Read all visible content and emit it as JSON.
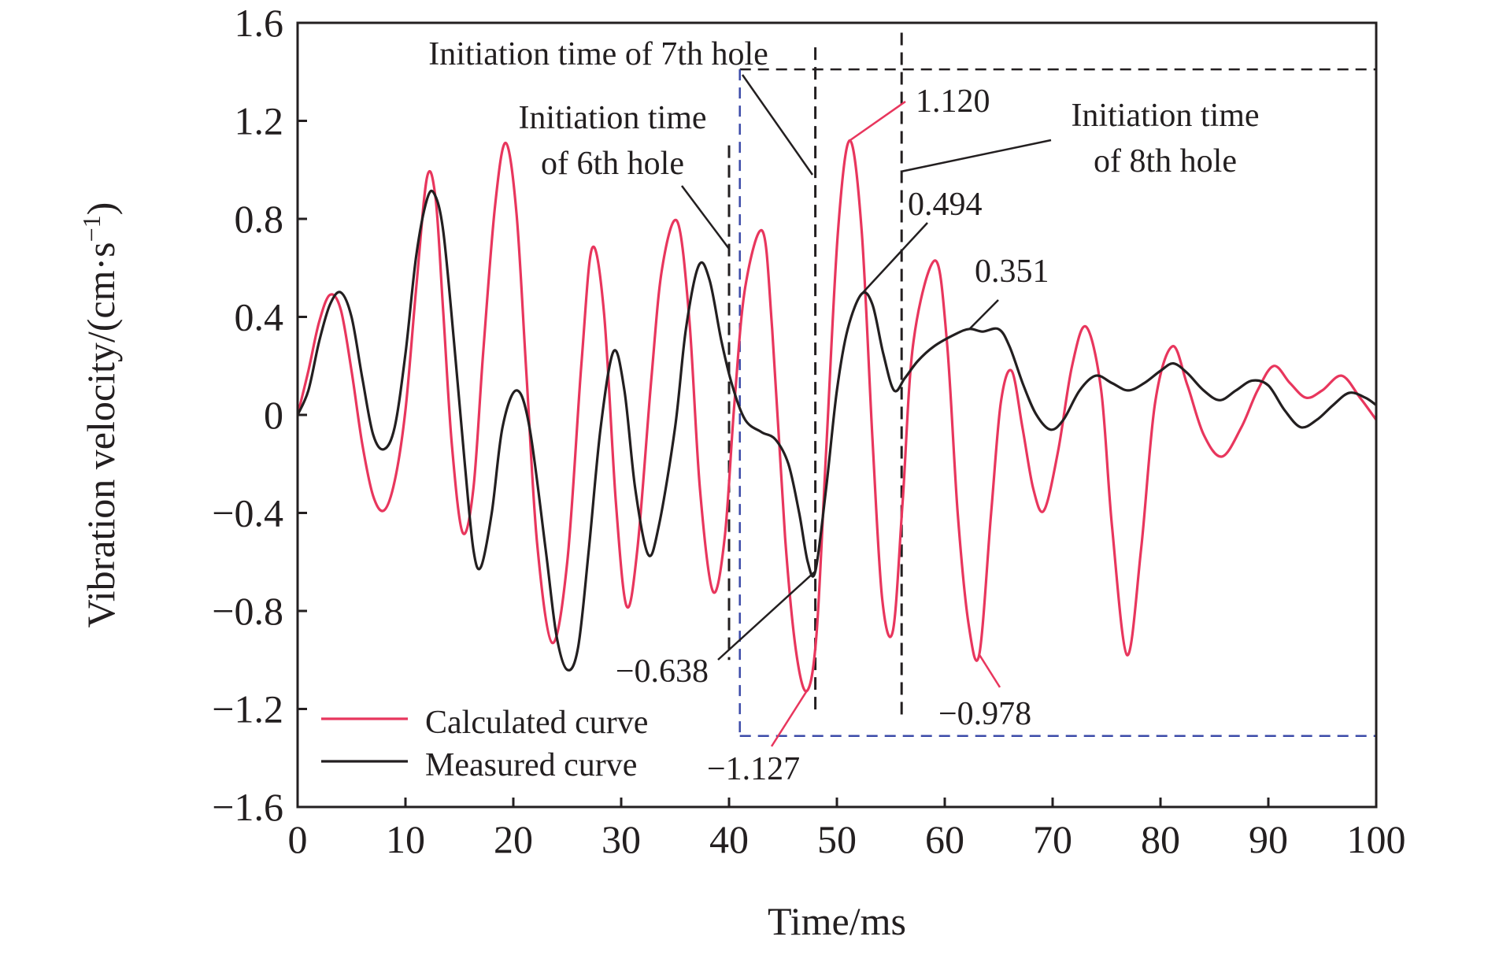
{
  "chart_data": {
    "type": "line",
    "xlabel": "Time/ms",
    "ylabel": "Vibration velocity/(cm·s",
    "ylabel_sup": "−1",
    "ylabel_close": ")",
    "xlim": [
      0,
      100
    ],
    "ylim": [
      -1.6,
      1.6
    ],
    "xticks": [
      0,
      10,
      20,
      30,
      40,
      50,
      60,
      70,
      80,
      90,
      100
    ],
    "yticks": [
      1.6,
      1.2,
      0.8,
      0.4,
      0,
      -0.4,
      -0.8,
      -1.2,
      -1.6
    ],
    "ytick_labels": [
      "1.6",
      "1.2",
      "0.8",
      "0.4",
      "0",
      "−0.4",
      "−0.8",
      "−1.2",
      "−1.6"
    ],
    "grid": false,
    "legend_position": "bottom-left",
    "colors": {
      "calculated": "#e8365d",
      "measured": "#231f20",
      "dash": "#231f20",
      "box_blue": "#3b4aa8"
    },
    "series": [
      {
        "name": "Calculated curve",
        "color": "#e8365d",
        "points": [
          [
            0,
            0
          ],
          [
            1,
            0.18
          ],
          [
            2,
            0.38
          ],
          [
            3,
            0.49
          ],
          [
            4,
            0.43
          ],
          [
            5,
            0.18
          ],
          [
            6,
            -0.12
          ],
          [
            7,
            -0.33
          ],
          [
            8,
            -0.39
          ],
          [
            9,
            -0.27
          ],
          [
            10,
            0.02
          ],
          [
            11,
            0.52
          ],
          [
            12,
            0.97
          ],
          [
            12.8,
            0.88
          ],
          [
            13.5,
            0.42
          ],
          [
            14.3,
            -0.12
          ],
          [
            15.3,
            -0.48
          ],
          [
            16.3,
            -0.3
          ],
          [
            17.2,
            0.25
          ],
          [
            18.3,
            0.85
          ],
          [
            19.3,
            1.11
          ],
          [
            20.3,
            0.82
          ],
          [
            21.2,
            0.18
          ],
          [
            22.2,
            -0.52
          ],
          [
            23.6,
            -0.93
          ],
          [
            25,
            -0.6
          ],
          [
            26.3,
            0.2
          ],
          [
            27.3,
            0.68
          ],
          [
            28.4,
            0.42
          ],
          [
            29.5,
            -0.35
          ],
          [
            30.5,
            -0.78
          ],
          [
            31.5,
            -0.55
          ],
          [
            32.8,
            0.15
          ],
          [
            33.8,
            0.6
          ],
          [
            35.2,
            0.79
          ],
          [
            36.3,
            0.4
          ],
          [
            37.3,
            -0.3
          ],
          [
            38.5,
            -0.72
          ],
          [
            39.6,
            -0.5
          ],
          [
            40.5,
            0.05
          ],
          [
            41.5,
            0.52
          ],
          [
            43.1,
            0.75
          ],
          [
            44,
            0.35
          ],
          [
            45.2,
            -0.5
          ],
          [
            46.2,
            -0.96
          ],
          [
            47.2,
            -1.127
          ],
          [
            48.1,
            -0.9
          ],
          [
            49,
            -0.15
          ],
          [
            50.1,
            0.75
          ],
          [
            51.2,
            1.12
          ],
          [
            52.3,
            0.75
          ],
          [
            53.3,
            -0.1
          ],
          [
            54.2,
            -0.75
          ],
          [
            55.2,
            -0.88
          ],
          [
            56.1,
            -0.35
          ],
          [
            57.1,
            0.3
          ],
          [
            59.1,
            0.63
          ],
          [
            60.2,
            0.3
          ],
          [
            61.2,
            -0.4
          ],
          [
            62.2,
            -0.85
          ],
          [
            63.2,
            -0.978
          ],
          [
            64.3,
            -0.4
          ],
          [
            65.2,
            0.05
          ],
          [
            66.2,
            0.18
          ],
          [
            67.2,
            -0.05
          ],
          [
            68.2,
            -0.3
          ],
          [
            69.2,
            -0.39
          ],
          [
            70.5,
            -0.15
          ],
          [
            71.8,
            0.2
          ],
          [
            73.1,
            0.36
          ],
          [
            74.5,
            0.1
          ],
          [
            75.5,
            -0.45
          ],
          [
            76.9,
            -0.98
          ],
          [
            78.2,
            -0.55
          ],
          [
            79.5,
            0.05
          ],
          [
            81.1,
            0.28
          ],
          [
            82.5,
            0.12
          ],
          [
            84,
            -0.08
          ],
          [
            85.7,
            -0.17
          ],
          [
            87.5,
            -0.05
          ],
          [
            89,
            0.1
          ],
          [
            90.5,
            0.2
          ],
          [
            92,
            0.13
          ],
          [
            93.5,
            0.07
          ],
          [
            95,
            0.1
          ],
          [
            96.8,
            0.16
          ],
          [
            98.5,
            0.07
          ],
          [
            100,
            -0.02
          ]
        ]
      },
      {
        "name": "Measured curve",
        "color": "#231f20",
        "points": [
          [
            0,
            0
          ],
          [
            1,
            0.1
          ],
          [
            2,
            0.3
          ],
          [
            3,
            0.45
          ],
          [
            4,
            0.5
          ],
          [
            5,
            0.4
          ],
          [
            6,
            0.15
          ],
          [
            7,
            -0.08
          ],
          [
            8,
            -0.14
          ],
          [
            9,
            -0.05
          ],
          [
            10,
            0.25
          ],
          [
            11,
            0.65
          ],
          [
            12,
            0.88
          ],
          [
            12.7,
            0.9
          ],
          [
            13.5,
            0.75
          ],
          [
            14.5,
            0.3
          ],
          [
            15.5,
            -0.2
          ],
          [
            16.3,
            -0.55
          ],
          [
            17,
            -0.62
          ],
          [
            18,
            -0.4
          ],
          [
            19,
            -0.05
          ],
          [
            20.3,
            0.1
          ],
          [
            21.5,
            -0.05
          ],
          [
            23,
            -0.55
          ],
          [
            24,
            -0.9
          ],
          [
            25,
            -1.04
          ],
          [
            26,
            -0.95
          ],
          [
            27,
            -0.55
          ],
          [
            28.1,
            -0.05
          ],
          [
            29.3,
            0.26
          ],
          [
            30.3,
            0.1
          ],
          [
            31.3,
            -0.3
          ],
          [
            32.5,
            -0.57
          ],
          [
            33.5,
            -0.45
          ],
          [
            35,
            -0.05
          ],
          [
            36,
            0.35
          ],
          [
            37.2,
            0.61
          ],
          [
            38.2,
            0.55
          ],
          [
            39.3,
            0.3
          ],
          [
            40.3,
            0.12
          ],
          [
            41.5,
            -0.02
          ],
          [
            43,
            -0.07
          ],
          [
            44.3,
            -0.1
          ],
          [
            45.5,
            -0.2
          ],
          [
            46.5,
            -0.4
          ],
          [
            47.3,
            -0.6
          ],
          [
            48,
            -0.638
          ],
          [
            49,
            -0.3
          ],
          [
            50,
            0.1
          ],
          [
            51,
            0.35
          ],
          [
            52.3,
            0.494
          ],
          [
            53.3,
            0.45
          ],
          [
            54.3,
            0.25
          ],
          [
            55.3,
            0.1
          ],
          [
            56.3,
            0.15
          ],
          [
            57.5,
            0.22
          ],
          [
            59,
            0.28
          ],
          [
            61,
            0.33
          ],
          [
            62.3,
            0.351
          ],
          [
            63.5,
            0.34
          ],
          [
            65,
            0.35
          ],
          [
            66,
            0.28
          ],
          [
            67.3,
            0.12
          ],
          [
            68.5,
            0
          ],
          [
            69.8,
            -0.06
          ],
          [
            71,
            -0.02
          ],
          [
            72.5,
            0.1
          ],
          [
            74,
            0.16
          ],
          [
            75.5,
            0.13
          ],
          [
            77,
            0.1
          ],
          [
            78.5,
            0.13
          ],
          [
            80,
            0.18
          ],
          [
            81.2,
            0.21
          ],
          [
            82.5,
            0.17
          ],
          [
            84,
            0.1
          ],
          [
            85.5,
            0.06
          ],
          [
            87,
            0.1
          ],
          [
            88.5,
            0.14
          ],
          [
            90,
            0.12
          ],
          [
            91.5,
            0.02
          ],
          [
            93,
            -0.05
          ],
          [
            94.5,
            -0.02
          ],
          [
            96,
            0.04
          ],
          [
            97.5,
            0.09
          ],
          [
            99,
            0.07
          ],
          [
            100,
            0.04
          ]
        ]
      }
    ],
    "initiation_lines": [
      {
        "x": 40,
        "y_top": 1.1,
        "y_bottom": -1.0,
        "label_lines": [
          "Initiation time",
          "of 6th hole"
        ]
      },
      {
        "x": 48,
        "y_top": 1.5,
        "y_bottom": -1.23,
        "label_lines": [
          "Initiation time of 7th hole"
        ]
      },
      {
        "x": 56,
        "y_top": 1.56,
        "y_bottom": -1.23,
        "label_lines": [
          "Initiation time",
          "of 8th hole"
        ]
      }
    ],
    "zoom_box": {
      "x0": 41,
      "x1": 100,
      "y0": -1.31,
      "y1": 1.41
    },
    "annotations": [
      {
        "text": "1.120",
        "color": "#e8365d"
      },
      {
        "text": "0.494",
        "color": "#231f20"
      },
      {
        "text": "0.351",
        "color": "#231f20"
      },
      {
        "text": "−0.638",
        "color": "#231f20"
      },
      {
        "text": "−0.978",
        "color": "#e8365d"
      },
      {
        "text": "−1.127",
        "color": "#e8365d"
      }
    ]
  }
}
